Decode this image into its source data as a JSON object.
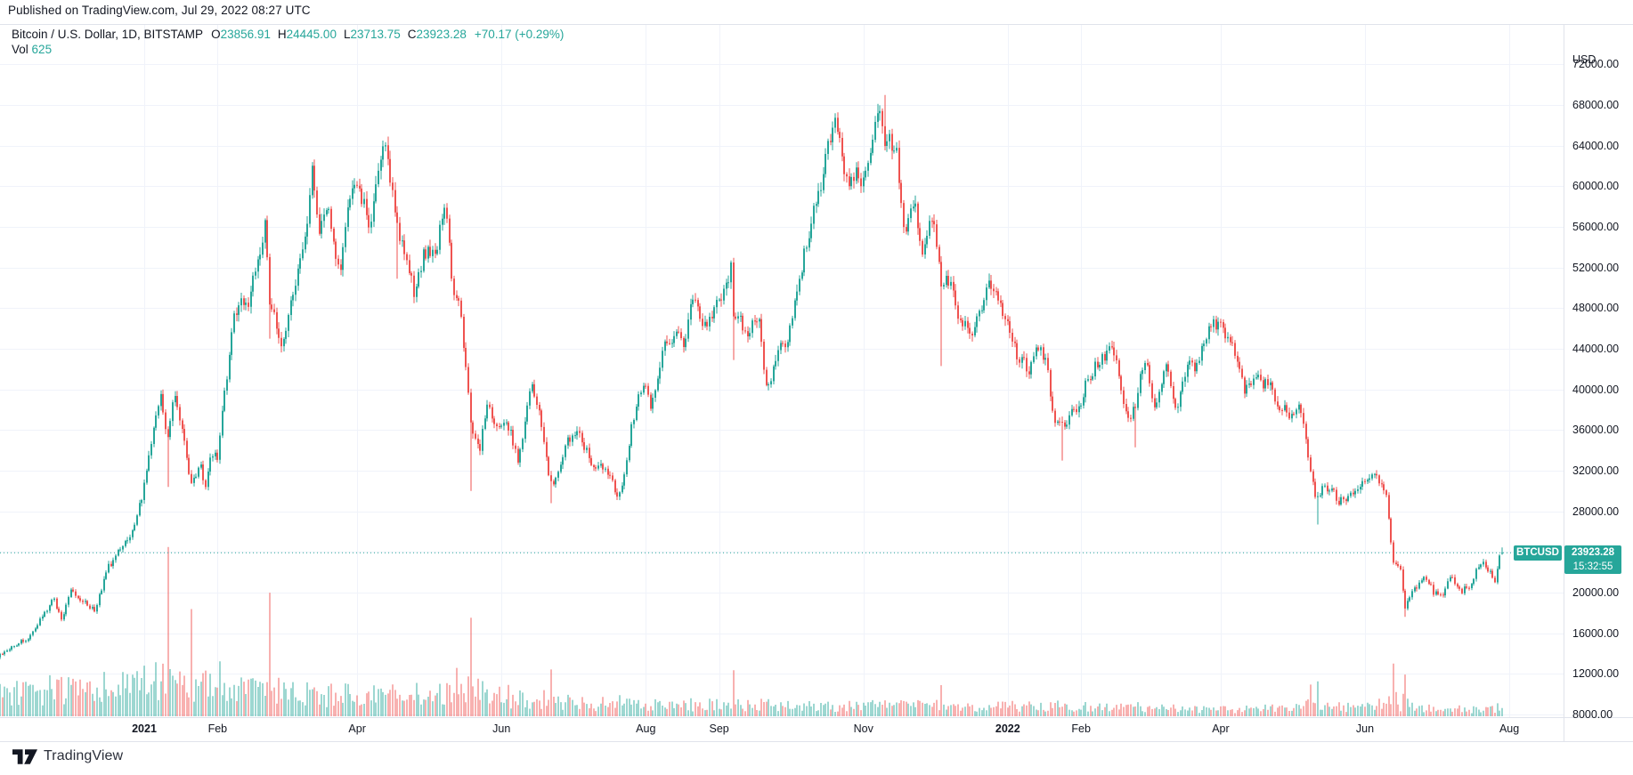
{
  "published": "Published on TradingView.com, Jul 29, 2022 08:27 UTC",
  "legend": {
    "title": "Bitcoin / U.S. Dollar, 1D, BITSTAMP",
    "ohlc": [
      {
        "k": "O",
        "v": "23856.91"
      },
      {
        "k": "H",
        "v": "24445.00"
      },
      {
        "k": "L",
        "v": "23713.75"
      },
      {
        "k": "C",
        "v": "23923.28"
      }
    ],
    "change": "+70.17 (+0.29%)",
    "vol_label": "Vol",
    "vol_value": "625"
  },
  "price_axis": {
    "currency": "USD"
  },
  "last_price": {
    "symbol": "BTCUSD",
    "price": "23923.28",
    "countdown": "15:32:55"
  },
  "logo": {
    "text": "TradingView"
  },
  "colors": {
    "up": "#26a69a",
    "down": "#ef5350",
    "vol_up": "rgba(38,166,154,0.45)",
    "vol_down": "rgba(239,83,80,0.45)",
    "grid": "#f0f3fa",
    "border": "#e0e3eb",
    "text": "#131722",
    "last_line": "#26a69a"
  },
  "chart_data": {
    "type": "candlestick",
    "title": "Bitcoin / U.S. Dollar",
    "symbol": "BTCUSD",
    "exchange": "BITSTAMP",
    "interval": "1D",
    "quote_currency": "USD",
    "date_range": {
      "start": "2020-11-01",
      "end": "2022-07-29"
    },
    "ylim": [
      6200,
      73600
    ],
    "grid": true,
    "last_candle": {
      "open": 23856.91,
      "high": 24445.0,
      "low": 23713.75,
      "close": 23923.28,
      "change": 70.17,
      "change_pct": 0.29,
      "volume": 625
    },
    "price_ticks": [
      72000,
      68000,
      64000,
      60000,
      56000,
      52000,
      48000,
      44000,
      40000,
      36000,
      32000,
      28000,
      24000,
      20000,
      16000,
      12000,
      8000
    ],
    "time_ticks": [
      {
        "label": "2021",
        "date": "2021-01-01",
        "bold": true
      },
      {
        "label": "Feb",
        "date": "2021-02-01",
        "bold": false
      },
      {
        "label": "Apr",
        "date": "2021-04-01",
        "bold": false
      },
      {
        "label": "Jun",
        "date": "2021-06-01",
        "bold": false
      },
      {
        "label": "Aug",
        "date": "2021-08-01",
        "bold": false
      },
      {
        "label": "Sep",
        "date": "2021-09-01",
        "bold": false
      },
      {
        "label": "Nov",
        "date": "2021-11-01",
        "bold": false
      },
      {
        "label": "2022",
        "date": "2022-01-01",
        "bold": true
      },
      {
        "label": "Feb",
        "date": "2022-02-01",
        "bold": false
      },
      {
        "label": "Apr",
        "date": "2022-04-01",
        "bold": false
      },
      {
        "label": "Jun",
        "date": "2022-06-01",
        "bold": false
      },
      {
        "label": "Aug",
        "date": "2022-08-01",
        "bold": false
      }
    ],
    "close_anchors": [
      [
        "2020-11-01",
        13750
      ],
      [
        "2020-11-07",
        14830
      ],
      [
        "2020-11-15",
        15960
      ],
      [
        "2020-11-24",
        19100
      ],
      [
        "2020-11-27",
        17150
      ],
      [
        "2020-12-01",
        19700
      ],
      [
        "2020-12-11",
        18050
      ],
      [
        "2020-12-17",
        22800
      ],
      [
        "2020-12-25",
        24700
      ],
      [
        "2020-12-31",
        29000
      ],
      [
        "2021-01-03",
        33000
      ],
      [
        "2021-01-08",
        40600
      ],
      [
        "2021-01-11",
        35500
      ],
      [
        "2021-01-14",
        39100
      ],
      [
        "2021-01-17",
        35800
      ],
      [
        "2021-01-21",
        30800
      ],
      [
        "2021-01-25",
        32250
      ],
      [
        "2021-01-27",
        30400
      ],
      [
        "2021-01-29",
        34300
      ],
      [
        "2021-02-01",
        33500
      ],
      [
        "2021-02-08",
        46400
      ],
      [
        "2021-02-14",
        48700
      ],
      [
        "2021-02-17",
        52100
      ],
      [
        "2021-02-21",
        57500
      ],
      [
        "2021-02-23",
        48800
      ],
      [
        "2021-02-26",
        46300
      ],
      [
        "2021-02-28",
        45100
      ],
      [
        "2021-03-05",
        48900
      ],
      [
        "2021-03-09",
        54900
      ],
      [
        "2021-03-13",
        61200
      ],
      [
        "2021-03-16",
        53900
      ],
      [
        "2021-03-20",
        58100
      ],
      [
        "2021-03-25",
        51700
      ],
      [
        "2021-03-29",
        57800
      ],
      [
        "2021-04-02",
        59000
      ],
      [
        "2021-04-07",
        56000
      ],
      [
        "2021-04-10",
        59800
      ],
      [
        "2021-04-13",
        63500
      ],
      [
        "2021-04-18",
        56200
      ],
      [
        "2021-04-21",
        53800
      ],
      [
        "2021-04-25",
        49000
      ],
      [
        "2021-04-29",
        53500
      ],
      [
        "2021-05-04",
        53200
      ],
      [
        "2021-05-08",
        58800
      ],
      [
        "2021-05-12",
        49150
      ],
      [
        "2021-05-15",
        46700
      ],
      [
        "2021-05-19",
        36750
      ],
      [
        "2021-05-23",
        34700
      ],
      [
        "2021-05-26",
        39300
      ],
      [
        "2021-05-30",
        35700
      ],
      [
        "2021-06-02",
        36600
      ],
      [
        "2021-06-05",
        35500
      ],
      [
        "2021-06-08",
        33400
      ],
      [
        "2021-06-14",
        40200
      ],
      [
        "2021-06-18",
        35800
      ],
      [
        "2021-06-21",
        31700
      ],
      [
        "2021-06-25",
        31500
      ],
      [
        "2021-06-29",
        35900
      ],
      [
        "2021-07-04",
        35300
      ],
      [
        "2021-07-09",
        33500
      ],
      [
        "2021-07-14",
        32700
      ],
      [
        "2021-07-20",
        29300
      ],
      [
        "2021-07-23",
        32100
      ],
      [
        "2021-07-26",
        37200
      ],
      [
        "2021-07-31",
        41600
      ],
      [
        "2021-08-03",
        38200
      ],
      [
        "2021-08-08",
        43800
      ],
      [
        "2021-08-11",
        45600
      ],
      [
        "2021-08-17",
        44700
      ],
      [
        "2021-08-21",
        48900
      ],
      [
        "2021-08-26",
        46850
      ],
      [
        "2021-09-01",
        48800
      ],
      [
        "2021-09-06",
        52650
      ],
      [
        "2021-09-07",
        46800
      ],
      [
        "2021-09-13",
        44950
      ],
      [
        "2021-09-18",
        48300
      ],
      [
        "2021-09-21",
        40700
      ],
      [
        "2021-09-26",
        43150
      ],
      [
        "2021-09-30",
        43800
      ],
      [
        "2021-10-05",
        51500
      ],
      [
        "2021-10-11",
        57480
      ],
      [
        "2021-10-15",
        61600
      ],
      [
        "2021-10-20",
        65990
      ],
      [
        "2021-10-24",
        60850
      ],
      [
        "2021-10-28",
        60600
      ],
      [
        "2021-11-01",
        61000
      ],
      [
        "2021-11-08",
        67550
      ],
      [
        "2021-11-10",
        64995
      ],
      [
        "2021-11-15",
        63600
      ],
      [
        "2021-11-18",
        56900
      ],
      [
        "2021-11-23",
        57550
      ],
      [
        "2021-11-26",
        53570
      ],
      [
        "2021-12-01",
        57200
      ],
      [
        "2021-12-04",
        49200
      ],
      [
        "2021-12-08",
        50500
      ],
      [
        "2021-12-13",
        46700
      ],
      [
        "2021-12-17",
        46200
      ],
      [
        "2021-12-23",
        50800
      ],
      [
        "2021-12-27",
        50640
      ],
      [
        "2021-12-31",
        46200
      ],
      [
        "2022-01-05",
        43400
      ],
      [
        "2022-01-10",
        41800
      ],
      [
        "2022-01-13",
        43950
      ],
      [
        "2022-01-18",
        42350
      ],
      [
        "2022-01-21",
        36450
      ],
      [
        "2022-01-24",
        36650
      ],
      [
        "2022-01-28",
        37700
      ],
      [
        "2022-02-01",
        38700
      ],
      [
        "2022-02-04",
        41500
      ],
      [
        "2022-02-10",
        43550
      ],
      [
        "2022-02-16",
        43900
      ],
      [
        "2022-02-21",
        37000
      ],
      [
        "2022-02-24",
        38300
      ],
      [
        "2022-02-28",
        43160
      ],
      [
        "2022-03-04",
        39400
      ],
      [
        "2022-03-09",
        41950
      ],
      [
        "2022-03-13",
        37790
      ],
      [
        "2022-03-18",
        41950
      ],
      [
        "2022-03-22",
        42350
      ],
      [
        "2022-03-29",
        47450
      ],
      [
        "2022-04-02",
        46300
      ],
      [
        "2022-04-05",
        45500
      ],
      [
        "2022-04-11",
        39530
      ],
      [
        "2022-04-16",
        40400
      ],
      [
        "2022-04-21",
        40500
      ],
      [
        "2022-04-26",
        38100
      ],
      [
        "2022-04-30",
        37650
      ],
      [
        "2022-05-04",
        39700
      ],
      [
        "2022-05-08",
        34060
      ],
      [
        "2022-05-11",
        29100
      ],
      [
        "2022-05-15",
        31300
      ],
      [
        "2022-05-20",
        29200
      ],
      [
        "2022-05-26",
        29200
      ],
      [
        "2022-05-31",
        31800
      ],
      [
        "2022-06-06",
        31370
      ],
      [
        "2022-06-10",
        29100
      ],
      [
        "2022-06-13",
        22500
      ],
      [
        "2022-06-16",
        22570
      ],
      [
        "2022-06-18",
        19000
      ],
      [
        "2022-06-21",
        20700
      ],
      [
        "2022-06-26",
        21500
      ],
      [
        "2022-06-30",
        19800
      ],
      [
        "2022-07-04",
        20250
      ],
      [
        "2022-07-08",
        21640
      ],
      [
        "2022-07-12",
        19950
      ],
      [
        "2022-07-16",
        21200
      ],
      [
        "2022-07-20",
        23230
      ],
      [
        "2022-07-24",
        22600
      ],
      [
        "2022-07-26",
        21260
      ],
      [
        "2022-07-28",
        23850
      ],
      [
        "2022-07-29",
        23923.28
      ]
    ],
    "wick_extremes": [
      {
        "date": "2021-01-11",
        "low": 30400
      },
      {
        "date": "2021-02-23",
        "low": 45000
      },
      {
        "date": "2021-04-14",
        "high": 64895
      },
      {
        "date": "2021-04-18",
        "low": 50900
      },
      {
        "date": "2021-05-19",
        "low": 30000
      },
      {
        "date": "2021-06-22",
        "low": 28800
      },
      {
        "date": "2021-09-07",
        "low": 42900
      },
      {
        "date": "2021-10-20",
        "high": 67000
      },
      {
        "date": "2021-11-10",
        "high": 68999
      },
      {
        "date": "2021-12-04",
        "low": 42300
      },
      {
        "date": "2022-01-24",
        "low": 33000
      },
      {
        "date": "2022-02-24",
        "low": 34300
      },
      {
        "date": "2022-05-12",
        "low": 26700
      },
      {
        "date": "2022-06-18",
        "low": 17600
      }
    ],
    "volume_spikes": [
      {
        "date": "2021-01-11",
        "mult": 4.2
      },
      {
        "date": "2021-01-21",
        "mult": 2.2
      },
      {
        "date": "2021-02-23",
        "mult": 2.6
      },
      {
        "date": "2021-05-13",
        "mult": 2.2
      },
      {
        "date": "2021-05-19",
        "mult": 3.4
      },
      {
        "date": "2021-06-22",
        "mult": 2.0
      },
      {
        "date": "2021-07-21",
        "mult": 1.6
      },
      {
        "date": "2021-09-07",
        "mult": 2.6
      },
      {
        "date": "2021-12-04",
        "mult": 2.0
      },
      {
        "date": "2022-01-22",
        "mult": 1.7
      },
      {
        "date": "2022-02-24",
        "mult": 1.6
      },
      {
        "date": "2022-05-09",
        "mult": 2.0
      },
      {
        "date": "2022-05-12",
        "mult": 2.4
      },
      {
        "date": "2022-06-13",
        "mult": 3.2
      },
      {
        "date": "2022-06-14",
        "mult": 2.6
      },
      {
        "date": "2022-06-18",
        "mult": 2.2
      }
    ],
    "volume_trend": [
      [
        "2020-11-01",
        0.95
      ],
      [
        "2020-12-15",
        1.05
      ],
      [
        "2021-01-05",
        1.35
      ],
      [
        "2021-01-31",
        1.15
      ],
      [
        "2021-02-23",
        1.0
      ],
      [
        "2021-04-01",
        0.75
      ],
      [
        "2021-05-19",
        1.0
      ],
      [
        "2021-06-15",
        0.62
      ],
      [
        "2021-08-01",
        0.42
      ],
      [
        "2021-09-07",
        0.5
      ],
      [
        "2021-10-15",
        0.42
      ],
      [
        "2021-12-01",
        0.38
      ],
      [
        "2022-01-22",
        0.4
      ],
      [
        "2022-03-01",
        0.32
      ],
      [
        "2022-04-15",
        0.26
      ],
      [
        "2022-05-10",
        0.4
      ],
      [
        "2022-06-14",
        0.45
      ],
      [
        "2022-07-01",
        0.3
      ],
      [
        "2022-07-29",
        0.28
      ]
    ]
  }
}
